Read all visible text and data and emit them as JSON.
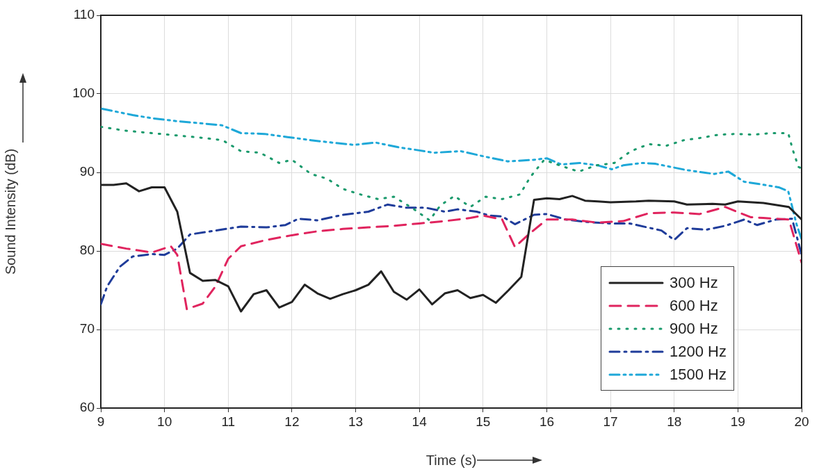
{
  "chart_data": {
    "type": "line",
    "xlabel": "Time (s)",
    "ylabel": "Sound Intensity (dB)",
    "xlim": [
      9,
      20
    ],
    "xticks": [
      9,
      10,
      11,
      12,
      13,
      14,
      15,
      16,
      17,
      18,
      19,
      20
    ],
    "ylim": [
      60,
      110
    ],
    "yticks": [
      60,
      70,
      80,
      90,
      100,
      110
    ],
    "grid": true,
    "legend": "bottom right",
    "marker": "none",
    "series": [
      {
        "name": "300 Hz",
        "color": "#222222",
        "line_style": "solid",
        "x": [
          9.0,
          9.2,
          9.4,
          9.6,
          9.8,
          10.0,
          10.2,
          10.4,
          10.6,
          10.8,
          11.0,
          11.2,
          11.4,
          11.6,
          11.8,
          12.0,
          12.2,
          12.4,
          12.6,
          12.8,
          13.0,
          13.2,
          13.4,
          13.6,
          13.8,
          14.0,
          14.2,
          14.4,
          14.6,
          14.8,
          15.0,
          15.2,
          15.4,
          15.6,
          15.8,
          16.0,
          16.2,
          16.4,
          16.6,
          16.8,
          17.0,
          17.4,
          17.6,
          18.0,
          18.2,
          18.6,
          18.8,
          19.0,
          19.4,
          19.8,
          20.0
        ],
        "values": [
          88.4,
          88.4,
          88.6,
          87.6,
          88.1,
          88.1,
          85.0,
          77.2,
          76.2,
          76.3,
          75.5,
          72.3,
          74.5,
          75.0,
          72.8,
          73.5,
          75.7,
          74.6,
          73.9,
          74.5,
          75.0,
          75.7,
          77.4,
          74.8,
          73.8,
          75.1,
          73.2,
          74.6,
          75.0,
          74.0,
          74.4,
          73.4,
          75.0,
          76.7,
          86.5,
          86.7,
          86.6,
          87.0,
          86.4,
          86.3,
          86.2,
          86.3,
          86.4,
          86.3,
          85.9,
          86.0,
          85.9,
          86.3,
          86.1,
          85.6,
          84.0
        ]
      },
      {
        "name": "600 Hz",
        "color": "#e0245e",
        "line_style": "dashed",
        "x": [
          9.0,
          9.4,
          9.8,
          10.1,
          10.2,
          10.35,
          10.6,
          10.8,
          11.0,
          11.2,
          11.6,
          12.0,
          12.4,
          12.8,
          13.2,
          13.6,
          14.0,
          14.4,
          14.8,
          15.0,
          15.3,
          15.5,
          15.7,
          16.0,
          16.4,
          16.8,
          17.2,
          17.6,
          18.0,
          18.4,
          18.8,
          19.2,
          19.4,
          19.8,
          20.0
        ],
        "values": [
          80.9,
          80.3,
          79.8,
          80.6,
          79.5,
          72.6,
          73.3,
          75.5,
          79.0,
          80.6,
          81.4,
          82.0,
          82.5,
          82.8,
          83.0,
          83.2,
          83.5,
          83.8,
          84.2,
          84.5,
          84.0,
          80.5,
          82.0,
          84.0,
          84.0,
          83.6,
          83.8,
          84.8,
          84.9,
          84.7,
          85.6,
          84.3,
          84.2,
          84.0,
          78.5
        ]
      },
      {
        "name": "900 Hz",
        "color": "#1a9a6c",
        "line_style": "dotted",
        "x": [
          9.0,
          9.4,
          9.8,
          10.2,
          10.6,
          10.91,
          11.2,
          11.5,
          11.8,
          12.0,
          12.3,
          12.55,
          12.8,
          13.07,
          13.35,
          13.6,
          13.9,
          14.16,
          14.33,
          14.55,
          14.8,
          15.04,
          15.3,
          15.58,
          15.74,
          15.96,
          16.2,
          16.5,
          16.78,
          17.06,
          17.32,
          17.6,
          17.88,
          18.15,
          18.42,
          18.7,
          18.97,
          19.24,
          19.51,
          19.79,
          19.86,
          19.95,
          20.0
        ],
        "values": [
          95.8,
          95.3,
          95.0,
          94.7,
          94.4,
          94.1,
          92.7,
          92.5,
          91.2,
          91.6,
          89.8,
          89.2,
          87.9,
          87.2,
          86.6,
          86.9,
          85.4,
          83.9,
          85.8,
          87.0,
          85.6,
          86.9,
          86.6,
          87.2,
          89.4,
          91.6,
          90.9,
          90.1,
          90.9,
          91.2,
          92.7,
          93.6,
          93.4,
          94.1,
          94.4,
          94.8,
          94.9,
          94.8,
          95.0,
          95.0,
          92.9,
          90.7,
          90.5
        ]
      },
      {
        "name": "1200 Hz",
        "color": "#1f3c9a",
        "line_style": "dashdot",
        "x": [
          9.0,
          9.1,
          9.3,
          9.5,
          9.8,
          10.0,
          10.2,
          10.4,
          10.8,
          11.2,
          11.6,
          11.9,
          12.1,
          12.4,
          12.8,
          13.2,
          13.5,
          13.8,
          14.1,
          14.4,
          14.6,
          14.9,
          15.1,
          15.3,
          15.5,
          15.8,
          16.0,
          16.3,
          16.6,
          17.0,
          17.3,
          17.8,
          18.0,
          18.2,
          18.5,
          18.8,
          19.1,
          19.3,
          19.6,
          19.85,
          20.0
        ],
        "values": [
          73.2,
          75.5,
          78.0,
          79.3,
          79.6,
          79.5,
          80.3,
          82.1,
          82.6,
          83.1,
          83.0,
          83.3,
          84.1,
          83.9,
          84.6,
          85.0,
          85.9,
          85.5,
          85.5,
          85.0,
          85.3,
          85.0,
          84.5,
          84.4,
          83.4,
          84.6,
          84.7,
          84.0,
          83.7,
          83.5,
          83.5,
          82.6,
          81.4,
          82.9,
          82.7,
          83.2,
          84.0,
          83.3,
          84.0,
          84.1,
          79.5
        ]
      },
      {
        "name": "1500 Hz",
        "color": "#1ea8d8",
        "line_style": "dashdotdot",
        "x": [
          9.02,
          9.5,
          9.8,
          10.22,
          10.5,
          10.9,
          11.2,
          11.57,
          11.93,
          12.3,
          12.62,
          12.98,
          13.31,
          13.67,
          14.0,
          14.22,
          14.65,
          15.09,
          15.39,
          15.79,
          16.0,
          16.23,
          16.51,
          16.8,
          17.02,
          17.2,
          17.5,
          17.7,
          18.19,
          18.63,
          18.85,
          19.1,
          19.35,
          19.64,
          19.79,
          19.84,
          19.92,
          20.0
        ],
        "values": [
          98.1,
          97.3,
          96.9,
          96.5,
          96.3,
          96.0,
          95.0,
          94.9,
          94.5,
          94.1,
          93.8,
          93.5,
          93.8,
          93.2,
          92.8,
          92.5,
          92.7,
          91.9,
          91.4,
          91.6,
          91.8,
          91.0,
          91.2,
          90.9,
          90.4,
          90.9,
          91.2,
          91.1,
          90.3,
          89.8,
          90.1,
          88.8,
          88.5,
          88.1,
          87.6,
          86.0,
          83.4,
          81.5
        ]
      }
    ]
  }
}
